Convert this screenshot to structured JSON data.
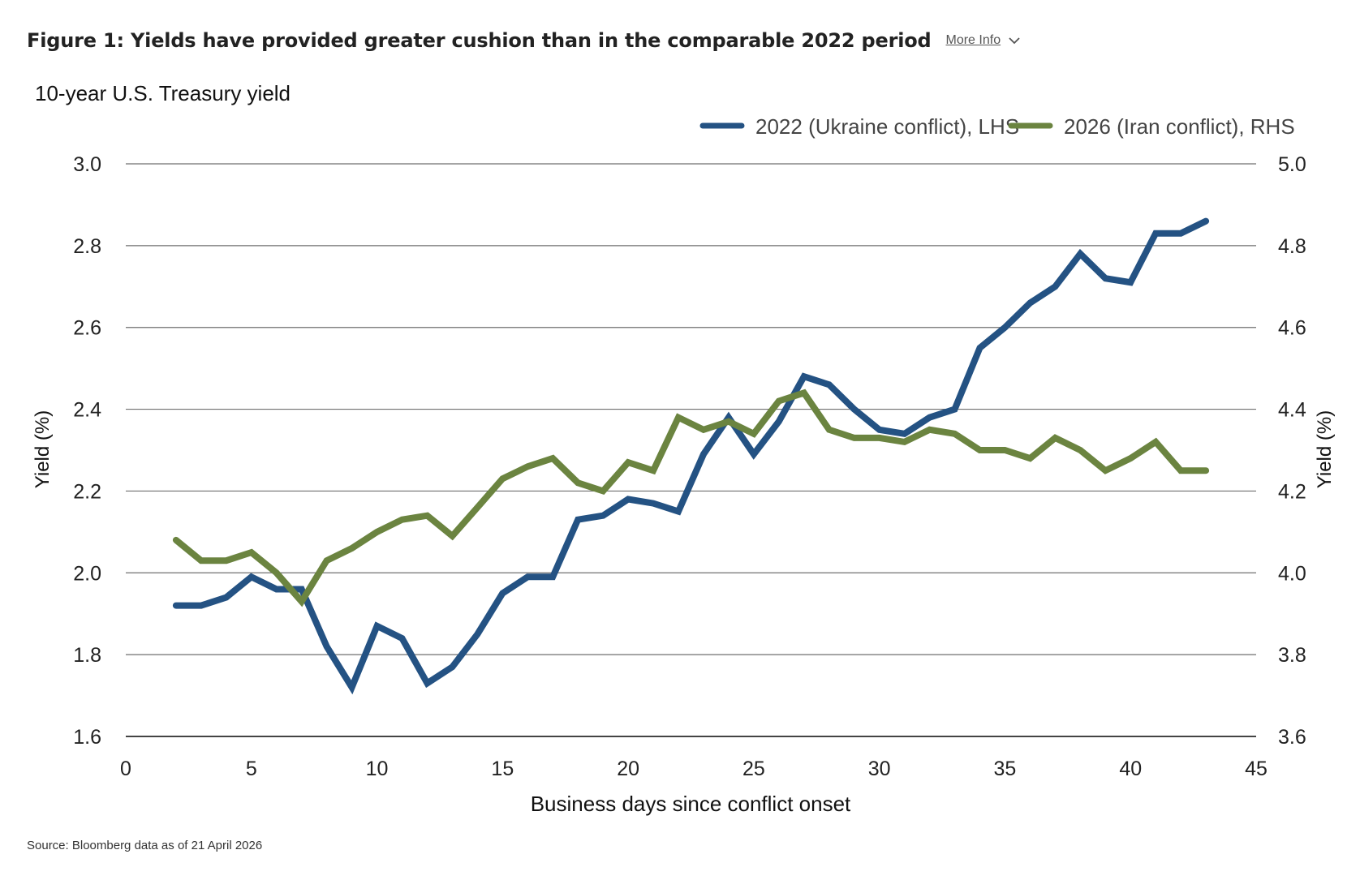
{
  "header": {
    "title": "Figure 1: Yields have provided greater cushion than in the comparable 2022 period",
    "more_info_label": "More Info"
  },
  "source": "Source: Bloomberg data as of 21 April 2026",
  "colors": {
    "series_2022": "#245283",
    "series_2026": "#6b8440",
    "grid": "#6f6f6f"
  },
  "icons": {
    "more_info": "chevron-down-icon"
  },
  "chart_data": {
    "type": "line",
    "title": "10-year U.S. Treasury yield",
    "xlabel": "Business days since conflict onset",
    "ylabel_left": "Yield (%)",
    "ylabel_right": "Yield (%)",
    "xlim": [
      0,
      45
    ],
    "x_ticks": [
      0,
      5,
      10,
      15,
      20,
      25,
      30,
      35,
      40,
      45
    ],
    "ylim_left": [
      1.6,
      3.0
    ],
    "y_ticks_left": [
      "1.6",
      "1.8",
      "2.0",
      "2.2",
      "2.4",
      "2.6",
      "2.8",
      "3.0"
    ],
    "ylim_right": [
      3.6,
      5.0
    ],
    "y_ticks_right": [
      "3.6",
      "3.8",
      "4.0",
      "4.2",
      "4.4",
      "4.6",
      "4.8",
      "5.0"
    ],
    "grid": true,
    "legend_position": "top-right",
    "series": [
      {
        "name": "2022 (Ukraine conflict), LHS",
        "axis": "left",
        "x": [
          2,
          3,
          4,
          5,
          6,
          7,
          8,
          9,
          10,
          11,
          12,
          13,
          14,
          15,
          16,
          17,
          18,
          19,
          20,
          21,
          22,
          23,
          24,
          25,
          26,
          27,
          28,
          29,
          30,
          31,
          32,
          33,
          34,
          35,
          36,
          37,
          38,
          39,
          40,
          41,
          42,
          43
        ],
        "values": [
          1.92,
          1.92,
          1.94,
          1.99,
          1.96,
          1.96,
          1.82,
          1.72,
          1.87,
          1.84,
          1.73,
          1.77,
          1.85,
          1.95,
          1.99,
          1.99,
          2.13,
          2.14,
          2.18,
          2.17,
          2.15,
          2.29,
          2.38,
          2.29,
          2.37,
          2.48,
          2.46,
          2.4,
          2.35,
          2.34,
          2.38,
          2.4,
          2.55,
          2.6,
          2.66,
          2.7,
          2.78,
          2.72,
          2.71,
          2.83,
          2.83,
          2.86
        ]
      },
      {
        "name": "2026 (Iran conflict), RHS",
        "axis": "right",
        "x": [
          2,
          3,
          4,
          5,
          6,
          7,
          8,
          9,
          10,
          11,
          12,
          13,
          14,
          15,
          16,
          17,
          18,
          19,
          20,
          21,
          22,
          23,
          24,
          25,
          26,
          27,
          28,
          29,
          30,
          31,
          32,
          33,
          34,
          35,
          36,
          37,
          38,
          39,
          40,
          41,
          42,
          43
        ],
        "values": [
          4.08,
          4.03,
          4.03,
          4.05,
          4.0,
          3.93,
          4.03,
          4.06,
          4.1,
          4.13,
          4.14,
          4.09,
          4.16,
          4.23,
          4.26,
          4.28,
          4.22,
          4.2,
          4.27,
          4.25,
          4.38,
          4.35,
          4.37,
          4.34,
          4.42,
          4.44,
          4.35,
          4.33,
          4.33,
          4.32,
          4.35,
          4.34,
          4.3,
          4.3,
          4.28,
          4.33,
          4.3,
          4.25,
          4.28,
          4.32,
          4.25,
          4.25
        ]
      }
    ]
  }
}
